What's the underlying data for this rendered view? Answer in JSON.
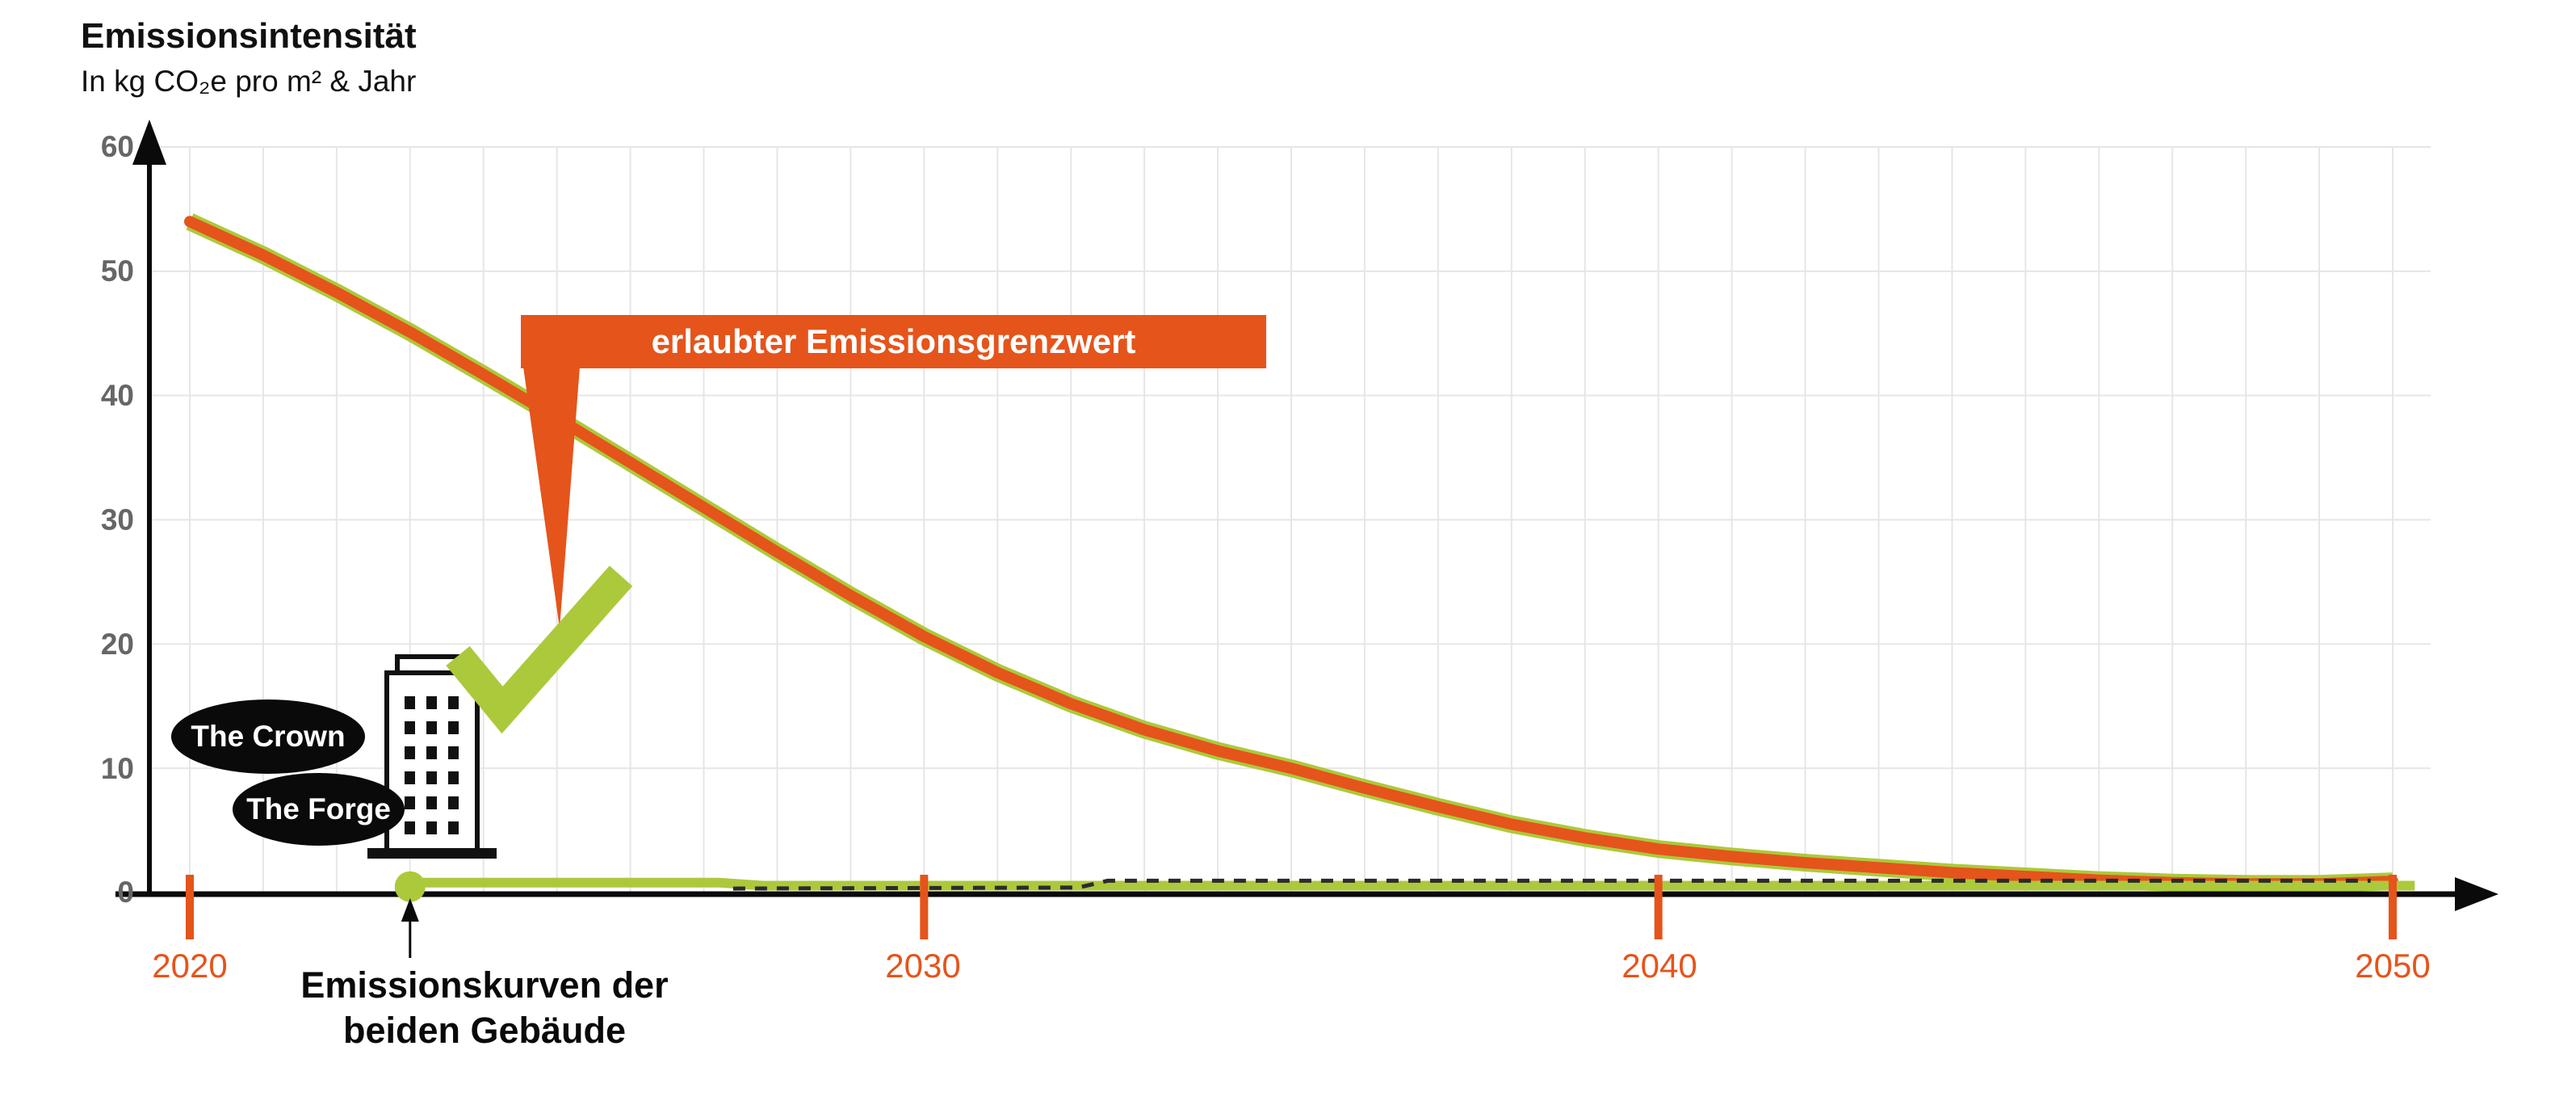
{
  "header": {
    "title": "Emissionsintensität",
    "subtitle": "In kg CO₂e pro m² & Jahr"
  },
  "chart_data": {
    "type": "line",
    "title": "Emissionsintensität",
    "ylabel": "In kg CO₂e pro m² & Jahr",
    "xlim": [
      2020,
      2050
    ],
    "ylim": [
      0,
      60
    ],
    "grid": true,
    "x_ticks": [
      "2020",
      "2030",
      "2040",
      "2050"
    ],
    "x_tick_years": [
      2020,
      2030,
      2040,
      2050
    ],
    "y_ticks": [
      "60",
      "50",
      "40",
      "30",
      "20",
      "10",
      "0"
    ],
    "y_tick_values": [
      60,
      50,
      40,
      30,
      20,
      10,
      0
    ],
    "colors": {
      "limit_orange": "#E5541B",
      "building_green": "#ACC93B",
      "dashed_dark": "#2b2b2b",
      "grid_gray": "#e6e6e6",
      "tick_label_gray": "#666666"
    },
    "series": [
      {
        "name": "erlaubter Emissionsgrenzwert",
        "color": "#E5541B",
        "style": "solid",
        "points": [
          [
            2020,
            54
          ],
          [
            2021,
            51.3
          ],
          [
            2022,
            48.3
          ],
          [
            2023,
            45.1
          ],
          [
            2024,
            41.7
          ],
          [
            2025,
            38.2
          ],
          [
            2026,
            34.6
          ],
          [
            2027,
            31
          ],
          [
            2028,
            27.4
          ],
          [
            2029,
            23.9
          ],
          [
            2030,
            20.6
          ],
          [
            2031,
            17.7
          ],
          [
            2032,
            15.2
          ],
          [
            2033,
            13.1
          ],
          [
            2034,
            11.4
          ],
          [
            2035,
            10
          ],
          [
            2036,
            8.4
          ],
          [
            2037,
            6.9
          ],
          [
            2038,
            5.5
          ],
          [
            2039,
            4.4
          ],
          [
            2040,
            3.5
          ],
          [
            2041,
            2.9
          ],
          [
            2042,
            2.4
          ],
          [
            2043,
            2
          ],
          [
            2044,
            1.6
          ],
          [
            2045,
            1.3
          ],
          [
            2046,
            1
          ],
          [
            2047,
            0.8
          ],
          [
            2048,
            0.7
          ],
          [
            2049,
            0.7
          ],
          [
            2050,
            0.9
          ]
        ]
      },
      {
        "name": "The Crown",
        "color": "#ACC93B",
        "style": "solid",
        "points": [
          [
            2023,
            0.8
          ],
          [
            2027.2,
            0.8
          ],
          [
            2027.8,
            0.55
          ],
          [
            2050.3,
            0.55
          ]
        ]
      },
      {
        "name": "The Forge",
        "color": "#2b2b2b",
        "style": "dashed",
        "points": [
          [
            2027.4,
            0.32
          ],
          [
            2032.1,
            0.4
          ],
          [
            2032.5,
            0.95
          ],
          [
            2049.7,
            0.95
          ]
        ]
      }
    ],
    "annotations": {
      "limit_callout": "erlaubter Emissionsgrenzwert",
      "building_labels": [
        "The Crown",
        "The Forge"
      ],
      "curves_note": "Emissionskurven der\nbeiden Gebäude",
      "start_marker": {
        "year": 2023,
        "value": 0.8
      }
    },
    "legend_position": "none"
  },
  "labels": {
    "crown": "The Crown",
    "forge": "The Forge",
    "callout": "erlaubter Emissionsgrenzwert",
    "curves_note": "Emissionskurven der\nbeiden Gebäude"
  }
}
